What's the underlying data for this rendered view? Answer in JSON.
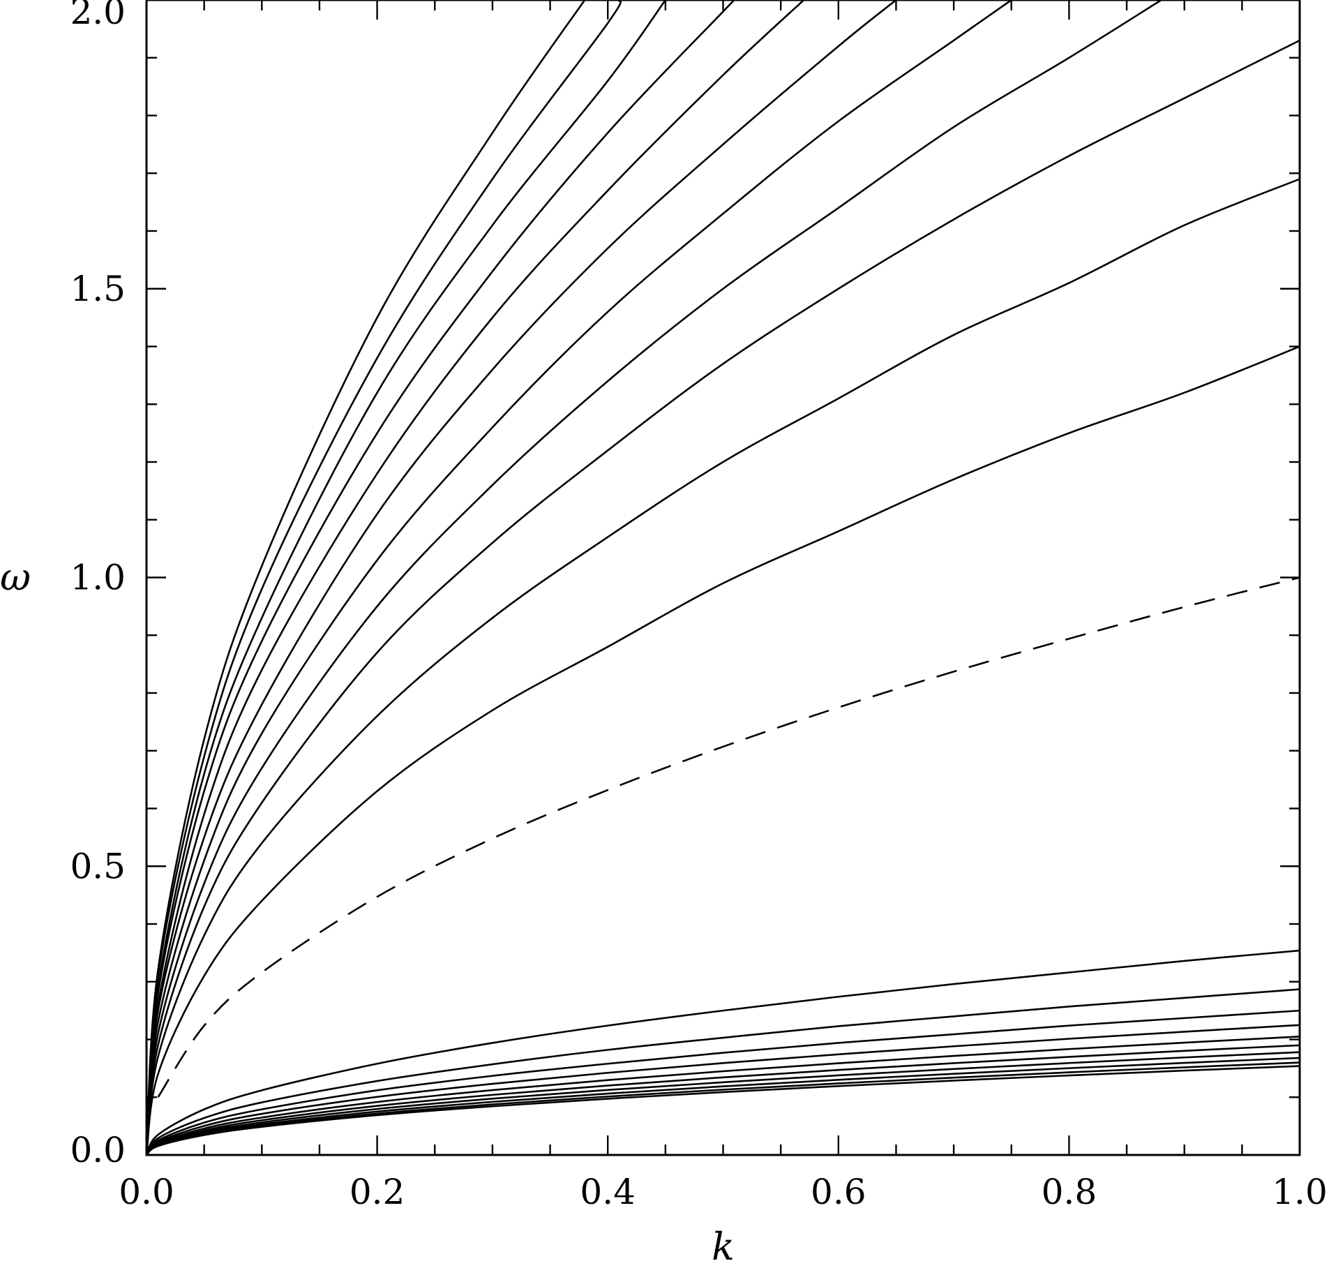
{
  "chart_data": {
    "type": "line",
    "xlabel": "k",
    "ylabel": "ω",
    "xlim": [
      0.0,
      1.0
    ],
    "ylim": [
      0.0,
      2.0
    ],
    "x_ticks": [
      "0.0",
      "0.2",
      "0.4",
      "0.6",
      "0.8",
      "1.0"
    ],
    "y_ticks": [
      "0.0",
      "0.5",
      "1.0",
      "1.5",
      "2.0"
    ],
    "grid": false,
    "legend": "none",
    "line_color": "#000000",
    "series": [
      {
        "style": "dashed",
        "x": [
          0.01,
          0.05,
          0.1,
          0.2,
          0.3,
          0.4,
          0.5,
          0.6,
          0.7,
          0.8,
          0.9,
          1.0
        ],
        "y": [
          0.1,
          0.224,
          0.316,
          0.447,
          0.548,
          0.632,
          0.707,
          0.775,
          0.837,
          0.894,
          0.949,
          1.0
        ]
      },
      {
        "style": "solid",
        "x": [
          0.0,
          0.01,
          0.05,
          0.1,
          0.2,
          0.3,
          0.4,
          0.5,
          0.6,
          0.7,
          0.8,
          0.9,
          1.0
        ],
        "y": [
          0.0,
          0.14,
          0.31,
          0.44,
          0.63,
          0.77,
          0.88,
          0.99,
          1.08,
          1.17,
          1.25,
          1.32,
          1.4
        ]
      },
      {
        "style": "solid",
        "x": [
          0.0,
          0.01,
          0.05,
          0.1,
          0.2,
          0.3,
          0.4,
          0.5,
          0.6,
          0.7,
          0.8,
          0.9,
          1.0
        ],
        "y": [
          0.0,
          0.17,
          0.38,
          0.54,
          0.76,
          0.93,
          1.07,
          1.2,
          1.31,
          1.42,
          1.51,
          1.61,
          1.69
        ]
      },
      {
        "style": "solid",
        "x": [
          0.0,
          0.01,
          0.05,
          0.1,
          0.2,
          0.3,
          0.4,
          0.5,
          0.6,
          0.7,
          0.8,
          0.9,
          1.0
        ],
        "y": [
          0.0,
          0.19,
          0.43,
          0.61,
          0.87,
          1.06,
          1.22,
          1.37,
          1.5,
          1.62,
          1.73,
          1.83,
          1.93
        ]
      },
      {
        "style": "solid",
        "x": [
          0.0,
          0.01,
          0.05,
          0.1,
          0.2,
          0.3,
          0.4,
          0.5,
          0.6,
          0.7,
          0.8,
          0.88
        ],
        "y": [
          0.0,
          0.21,
          0.47,
          0.67,
          0.95,
          1.16,
          1.34,
          1.5,
          1.64,
          1.78,
          1.9,
          2.0
        ]
      },
      {
        "style": "solid",
        "x": [
          0.0,
          0.01,
          0.05,
          0.1,
          0.2,
          0.3,
          0.4,
          0.5,
          0.6,
          0.7,
          0.75
        ],
        "y": [
          0.0,
          0.23,
          0.51,
          0.73,
          1.03,
          1.26,
          1.46,
          1.63,
          1.79,
          1.93,
          2.0
        ]
      },
      {
        "style": "solid",
        "x": [
          0.0,
          0.01,
          0.05,
          0.1,
          0.2,
          0.3,
          0.4,
          0.5,
          0.6,
          0.65
        ],
        "y": [
          0.0,
          0.25,
          0.55,
          0.78,
          1.11,
          1.36,
          1.57,
          1.75,
          1.92,
          2.0
        ]
      },
      {
        "style": "solid",
        "x": [
          0.0,
          0.01,
          0.05,
          0.1,
          0.2,
          0.3,
          0.4,
          0.5,
          0.57
        ],
        "y": [
          0.0,
          0.26,
          0.59,
          0.84,
          1.18,
          1.45,
          1.67,
          1.87,
          2.0
        ]
      },
      {
        "style": "solid",
        "x": [
          0.0,
          0.01,
          0.05,
          0.1,
          0.2,
          0.3,
          0.4,
          0.5,
          0.51
        ],
        "y": [
          0.0,
          0.28,
          0.63,
          0.89,
          1.25,
          1.53,
          1.77,
          1.98,
          2.0
        ]
      },
      {
        "style": "solid",
        "x": [
          0.0,
          0.01,
          0.05,
          0.1,
          0.2,
          0.3,
          0.4,
          0.45
        ],
        "y": [
          0.0,
          0.29,
          0.66,
          0.93,
          1.32,
          1.61,
          1.86,
          2.0
        ]
      },
      {
        "style": "solid",
        "x": [
          0.0,
          0.01,
          0.05,
          0.1,
          0.2,
          0.3,
          0.4,
          0.41
        ],
        "y": [
          0.0,
          0.31,
          0.69,
          0.98,
          1.38,
          1.69,
          1.96,
          2.0
        ]
      },
      {
        "style": "solid",
        "x": [
          0.0,
          0.01,
          0.05,
          0.1,
          0.2,
          0.3,
          0.38
        ],
        "y": [
          0.0,
          0.32,
          0.72,
          1.02,
          1.45,
          1.77,
          2.0
        ]
      },
      {
        "style": "solid",
        "x": [
          0.0,
          0.01,
          0.05,
          0.1,
          0.2,
          0.3,
          0.4,
          0.5,
          0.6,
          0.7,
          0.8,
          0.9,
          1.0
        ],
        "y": [
          0.0,
          0.035,
          0.079,
          0.112,
          0.158,
          0.194,
          0.224,
          0.25,
          0.274,
          0.296,
          0.316,
          0.336,
          0.354
        ]
      },
      {
        "style": "solid",
        "x": [
          0.0,
          0.01,
          0.05,
          0.1,
          0.2,
          0.3,
          0.4,
          0.5,
          0.6,
          0.7,
          0.8,
          0.9,
          1.0
        ],
        "y": [
          0.0,
          0.029,
          0.064,
          0.091,
          0.128,
          0.157,
          0.182,
          0.203,
          0.223,
          0.24,
          0.257,
          0.272,
          0.287
        ]
      },
      {
        "style": "solid",
        "x": [
          0.0,
          0.01,
          0.05,
          0.1,
          0.2,
          0.3,
          0.4,
          0.5,
          0.6,
          0.7,
          0.8,
          0.9,
          1.0
        ],
        "y": [
          0.0,
          0.025,
          0.056,
          0.079,
          0.112,
          0.137,
          0.158,
          0.177,
          0.194,
          0.209,
          0.224,
          0.237,
          0.25
        ]
      },
      {
        "style": "solid",
        "x": [
          0.0,
          0.01,
          0.05,
          0.1,
          0.2,
          0.3,
          0.4,
          0.5,
          0.6,
          0.7,
          0.8,
          0.9,
          1.0
        ],
        "y": [
          0.0,
          0.0225,
          0.0503,
          0.0712,
          0.1006,
          0.1232,
          0.1423,
          0.1591,
          0.1743,
          0.1882,
          0.2012,
          0.2134,
          0.225
        ]
      },
      {
        "style": "solid",
        "x": [
          0.0,
          0.01,
          0.05,
          0.1,
          0.2,
          0.3,
          0.4,
          0.5,
          0.6,
          0.7,
          0.8,
          0.9,
          1.0
        ],
        "y": [
          0.0,
          0.0205,
          0.0458,
          0.0648,
          0.0917,
          0.1123,
          0.1297,
          0.145,
          0.1588,
          0.1715,
          0.1834,
          0.1945,
          0.205
        ]
      },
      {
        "style": "solid",
        "x": [
          0.0,
          0.01,
          0.05,
          0.1,
          0.2,
          0.3,
          0.4,
          0.5,
          0.6,
          0.7,
          0.8,
          0.9,
          1.0
        ],
        "y": [
          0.0,
          0.019,
          0.0425,
          0.0601,
          0.085,
          0.1041,
          0.1202,
          0.1344,
          0.1472,
          0.159,
          0.1699,
          0.1803,
          0.19
        ]
      },
      {
        "style": "solid",
        "x": [
          0.0,
          0.01,
          0.05,
          0.1,
          0.2,
          0.3,
          0.4,
          0.5,
          0.6,
          0.7,
          0.8,
          0.9,
          1.0
        ],
        "y": [
          0.0,
          0.0178,
          0.0398,
          0.0563,
          0.0796,
          0.0975,
          0.1126,
          0.1259,
          0.1379,
          0.1489,
          0.1592,
          0.1689,
          0.178
        ]
      },
      {
        "style": "solid",
        "x": [
          0.0,
          0.01,
          0.05,
          0.1,
          0.2,
          0.3,
          0.4,
          0.5,
          0.6,
          0.7,
          0.8,
          0.9,
          1.0
        ],
        "y": [
          0.0,
          0.0168,
          0.0376,
          0.0531,
          0.0751,
          0.092,
          0.1063,
          0.1188,
          0.1301,
          0.1406,
          0.1503,
          0.1594,
          0.168
        ]
      },
      {
        "style": "solid",
        "x": [
          0.0,
          0.01,
          0.05,
          0.1,
          0.2,
          0.3,
          0.4,
          0.5,
          0.6,
          0.7,
          0.8,
          0.9,
          1.0
        ],
        "y": [
          0.0,
          0.016,
          0.0358,
          0.0506,
          0.0716,
          0.0876,
          0.1012,
          0.1131,
          0.1239,
          0.1339,
          0.1431,
          0.1518,
          0.16
        ]
      },
      {
        "style": "solid",
        "x": [
          0.0,
          0.01,
          0.05,
          0.1,
          0.2,
          0.3,
          0.4,
          0.5,
          0.6,
          0.7,
          0.8,
          0.9,
          1.0
        ],
        "y": [
          0.0,
          0.0154,
          0.0344,
          0.0487,
          0.0689,
          0.0843,
          0.0974,
          0.1089,
          0.1193,
          0.1288,
          0.1377,
          0.1461,
          0.154
        ]
      }
    ]
  }
}
